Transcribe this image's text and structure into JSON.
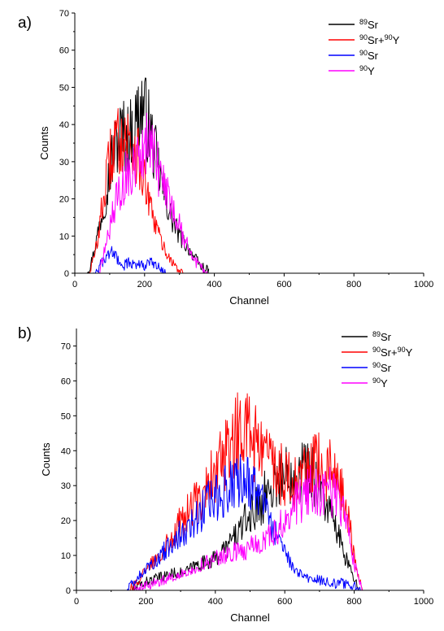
{
  "chart_data": [
    {
      "panel_label": "a)",
      "type": "line",
      "xlabel": "Channel",
      "ylabel": "Counts",
      "xlim": [
        0,
        1000
      ],
      "ylim": [
        0,
        70
      ],
      "xticks": [
        0,
        200,
        400,
        600,
        800,
        1000
      ],
      "yticks": [
        0,
        10,
        20,
        30,
        40,
        50,
        60,
        70
      ],
      "legend_position": "top-right",
      "series": [
        {
          "name": "89Sr",
          "legend": {
            "sup1": "89",
            "base1": "Sr",
            "sup2": "",
            "base2": ""
          },
          "color": "#000000",
          "points": [
            [
              30,
              0
            ],
            [
              45,
              2
            ],
            [
              60,
              8
            ],
            [
              75,
              15
            ],
            [
              90,
              22
            ],
            [
              105,
              30
            ],
            [
              120,
              35
            ],
            [
              135,
              38
            ],
            [
              150,
              36
            ],
            [
              165,
              38
            ],
            [
              180,
              42
            ],
            [
              195,
              45
            ],
            [
              210,
              40
            ],
            [
              225,
              34
            ],
            [
              240,
              28
            ],
            [
              255,
              22
            ],
            [
              270,
              17
            ],
            [
              285,
              13
            ],
            [
              300,
              10
            ],
            [
              315,
              8
            ],
            [
              330,
              6
            ],
            [
              345,
              4
            ],
            [
              360,
              2
            ],
            [
              375,
              1
            ],
            [
              385,
              0
            ]
          ]
        },
        {
          "name": "90Sr+90Y",
          "legend": {
            "sup1": "90",
            "base1": "Sr+",
            "sup2": "90",
            "base2": "Y"
          },
          "color": "#ff0000",
          "points": [
            [
              40,
              0
            ],
            [
              55,
              4
            ],
            [
              70,
              12
            ],
            [
              85,
              22
            ],
            [
              100,
              30
            ],
            [
              115,
              35
            ],
            [
              130,
              36
            ],
            [
              145,
              37
            ],
            [
              160,
              35
            ],
            [
              175,
              33
            ],
            [
              190,
              28
            ],
            [
              205,
              22
            ],
            [
              220,
              16
            ],
            [
              235,
              12
            ],
            [
              250,
              8
            ],
            [
              265,
              5
            ],
            [
              280,
              3
            ],
            [
              295,
              1
            ],
            [
              310,
              0
            ]
          ]
        },
        {
          "name": "90Sr",
          "legend": {
            "sup1": "90",
            "base1": "Sr",
            "sup2": "",
            "base2": ""
          },
          "color": "#0000ff",
          "points": [
            [
              50,
              0
            ],
            [
              65,
              1
            ],
            [
              80,
              3
            ],
            [
              95,
              5
            ],
            [
              110,
              6
            ],
            [
              125,
              3
            ],
            [
              140,
              2
            ],
            [
              155,
              3
            ],
            [
              170,
              2
            ],
            [
              185,
              3
            ],
            [
              200,
              2
            ],
            [
              215,
              3
            ],
            [
              230,
              2
            ],
            [
              245,
              1
            ],
            [
              260,
              0
            ]
          ]
        },
        {
          "name": "90Y",
          "legend": {
            "sup1": "90",
            "base1": "Y",
            "sup2": "",
            "base2": ""
          },
          "color": "#ff00ff",
          "points": [
            [
              70,
              0
            ],
            [
              85,
              6
            ],
            [
              100,
              12
            ],
            [
              115,
              18
            ],
            [
              130,
              22
            ],
            [
              145,
              26
            ],
            [
              160,
              28
            ],
            [
              175,
              30
            ],
            [
              190,
              32
            ],
            [
              205,
              34
            ],
            [
              220,
              33
            ],
            [
              235,
              29
            ],
            [
              250,
              25
            ],
            [
              265,
              21
            ],
            [
              280,
              17
            ],
            [
              295,
              14
            ],
            [
              310,
              10
            ],
            [
              325,
              7
            ],
            [
              340,
              4
            ],
            [
              355,
              2
            ],
            [
              370,
              1
            ],
            [
              380,
              0
            ]
          ]
        }
      ]
    },
    {
      "panel_label": "b)",
      "type": "line",
      "xlabel": "Channel",
      "ylabel": "Counts",
      "xlim": [
        0,
        1000
      ],
      "ylim": [
        0,
        75
      ],
      "xticks": [
        0,
        200,
        400,
        600,
        800,
        1000
      ],
      "yticks": [
        0,
        10,
        20,
        30,
        40,
        50,
        60,
        70
      ],
      "legend_position": "top-right",
      "series": [
        {
          "name": "89Sr",
          "legend": {
            "sup1": "89",
            "base1": "Sr",
            "sup2": "",
            "base2": ""
          },
          "color": "#000000",
          "points": [
            [
              160,
              0
            ],
            [
              190,
              2
            ],
            [
              220,
              3
            ],
            [
              250,
              4
            ],
            [
              280,
              5
            ],
            [
              310,
              5
            ],
            [
              340,
              7
            ],
            [
              370,
              8
            ],
            [
              400,
              9
            ],
            [
              430,
              12
            ],
            [
              460,
              16
            ],
            [
              490,
              20
            ],
            [
              520,
              24
            ],
            [
              550,
              28
            ],
            [
              580,
              32
            ],
            [
              610,
              33
            ],
            [
              640,
              35
            ],
            [
              670,
              34
            ],
            [
              700,
              30
            ],
            [
              730,
              22
            ],
            [
              760,
              14
            ],
            [
              780,
              8
            ],
            [
              800,
              3
            ],
            [
              820,
              0
            ]
          ]
        },
        {
          "name": "90Sr+90Y",
          "legend": {
            "sup1": "90",
            "base1": "Sr+",
            "sup2": "90",
            "base2": "Y"
          },
          "color": "#ff0000",
          "points": [
            [
              150,
              0
            ],
            [
              180,
              3
            ],
            [
              210,
              7
            ],
            [
              240,
              11
            ],
            [
              270,
              15
            ],
            [
              300,
              19
            ],
            [
              330,
              23
            ],
            [
              360,
              28
            ],
            [
              390,
              33
            ],
            [
              420,
              38
            ],
            [
              450,
              42
            ],
            [
              470,
              46
            ],
            [
              490,
              45
            ],
            [
              520,
              42
            ],
            [
              550,
              38
            ],
            [
              580,
              34
            ],
            [
              610,
              32
            ],
            [
              640,
              32
            ],
            [
              670,
              34
            ],
            [
              700,
              36
            ],
            [
              730,
              34
            ],
            [
              760,
              30
            ],
            [
              780,
              22
            ],
            [
              800,
              10
            ],
            [
              815,
              3
            ],
            [
              825,
              0
            ]
          ]
        },
        {
          "name": "90Sr",
          "legend": {
            "sup1": "90",
            "base1": "Sr",
            "sup2": "",
            "base2": ""
          },
          "color": "#0000ff",
          "points": [
            [
              140,
              0
            ],
            [
              170,
              3
            ],
            [
              200,
              6
            ],
            [
              230,
              9
            ],
            [
              260,
              12
            ],
            [
              290,
              15
            ],
            [
              320,
              18
            ],
            [
              350,
              22
            ],
            [
              380,
              25
            ],
            [
              410,
              27
            ],
            [
              440,
              29
            ],
            [
              470,
              31
            ],
            [
              500,
              30
            ],
            [
              530,
              26
            ],
            [
              560,
              19
            ],
            [
              590,
              12
            ],
            [
              620,
              7
            ],
            [
              650,
              4
            ],
            [
              680,
              3
            ],
            [
              710,
              3
            ],
            [
              740,
              2
            ],
            [
              770,
              2
            ],
            [
              800,
              1
            ],
            [
              820,
              0
            ]
          ]
        },
        {
          "name": "90Y",
          "legend": {
            "sup1": "90",
            "base1": "Y",
            "sup2": "",
            "base2": ""
          },
          "color": "#ff00ff",
          "points": [
            [
              160,
              0
            ],
            [
              190,
              1
            ],
            [
              220,
              2
            ],
            [
              250,
              3
            ],
            [
              280,
              4
            ],
            [
              310,
              5
            ],
            [
              340,
              6
            ],
            [
              370,
              8
            ],
            [
              400,
              9
            ],
            [
              430,
              10
            ],
            [
              460,
              11
            ],
            [
              490,
              12
            ],
            [
              520,
              13
            ],
            [
              550,
              15
            ],
            [
              580,
              18
            ],
            [
              610,
              22
            ],
            [
              640,
              26
            ],
            [
              670,
              28
            ],
            [
              700,
              29
            ],
            [
              730,
              28
            ],
            [
              760,
              25
            ],
            [
              780,
              18
            ],
            [
              800,
              8
            ],
            [
              815,
              2
            ],
            [
              825,
              0
            ]
          ]
        }
      ]
    }
  ]
}
